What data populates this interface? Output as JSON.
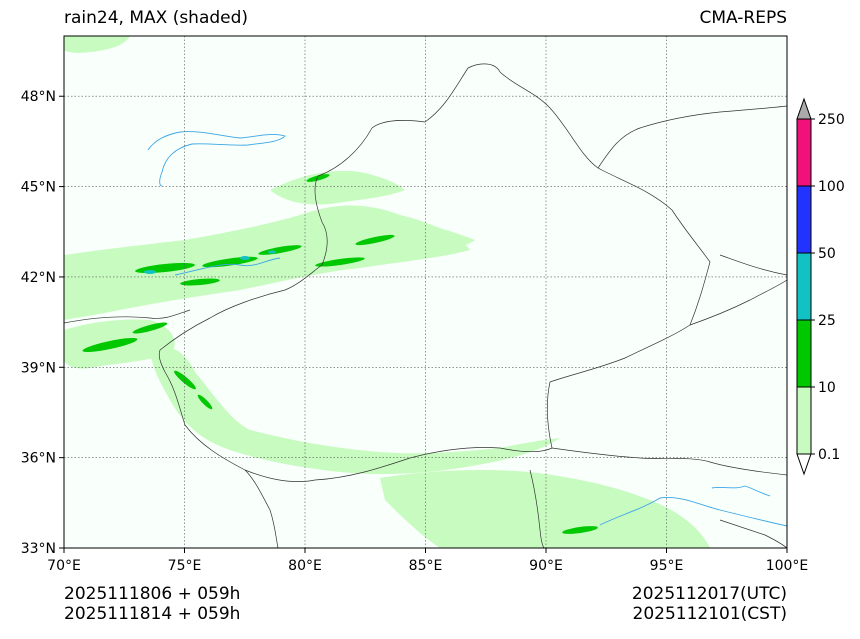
{
  "title": {
    "left": "rain24, MAX (shaded)",
    "right": "CMA-REPS"
  },
  "map": {
    "lon_range": [
      70,
      100
    ],
    "lat_range": [
      33,
      50
    ],
    "lon_ticks": [
      {
        "value": 70,
        "label": "70°E"
      },
      {
        "value": 75,
        "label": "75°E"
      },
      {
        "value": 80,
        "label": "80°E"
      },
      {
        "value": 85,
        "label": "85°E"
      },
      {
        "value": 90,
        "label": "90°E"
      },
      {
        "value": 95,
        "label": "95°E"
      },
      {
        "value": 100,
        "label": "100°E"
      }
    ],
    "lat_ticks": [
      {
        "value": 33,
        "label": "33°N"
      },
      {
        "value": 36,
        "label": "36°N"
      },
      {
        "value": 39,
        "label": "39°N"
      },
      {
        "value": 42,
        "label": "42°N"
      },
      {
        "value": 45,
        "label": "45°N"
      },
      {
        "value": 48,
        "label": "48°N"
      }
    ],
    "gridlines": true
  },
  "colorbar": {
    "levels": [
      {
        "label": "0.1",
        "color": "#c8fbc0"
      },
      {
        "label": "10",
        "color": "#00c800"
      },
      {
        "label": "25",
        "color": "#12c2c2"
      },
      {
        "label": "50",
        "color": "#2233ff"
      },
      {
        "label": "100",
        "color": "#f0127a"
      },
      {
        "label": "250",
        "color": "#aaaaaa"
      }
    ]
  },
  "footer": {
    "left_line1": "2025111806  +  059h",
    "left_line2": "2025111814  +  059h",
    "right_line1": "2025112017(UTC)",
    "right_line2": "2025112101(CST)"
  },
  "colors": {
    "light_rain": "#c8fbc0",
    "moderate_rain": "#00c800",
    "heavy_rain": "#12c2c2",
    "rivers": "#3aa6e6",
    "background": "#f9fffb"
  }
}
